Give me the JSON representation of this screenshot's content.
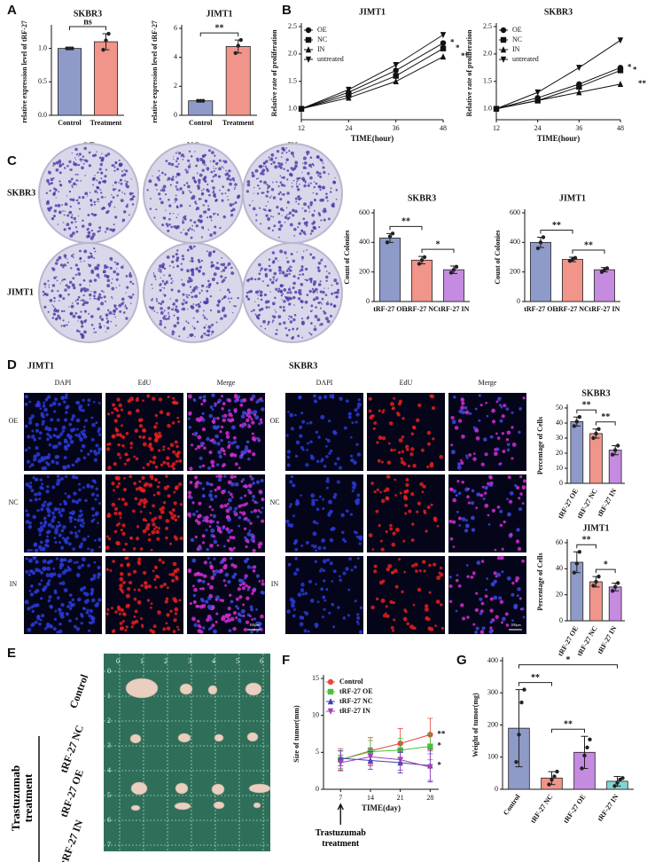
{
  "panels": [
    "A",
    "B",
    "C",
    "D",
    "E",
    "F",
    "G"
  ],
  "colony": {
    "columns": [
      "OE",
      "NC",
      "IN"
    ],
    "rows": [
      "SKBR3",
      "JIMT1"
    ]
  },
  "edu": {
    "titles": [
      "JIMT1",
      "SKBR3"
    ],
    "columns": [
      "DAPI",
      "EdU",
      "Merge"
    ],
    "rows": [
      "OE",
      "NC",
      "IN"
    ],
    "scale": "100μm"
  },
  "tumor": {
    "rows": [
      "Control",
      "tRF-27 NC",
      "tRF-27 OE",
      "tRF-27 IN"
    ],
    "group": "Trastuzumab treatment",
    "ruler_x": [
      "0",
      "1",
      "2",
      "3",
      "4",
      "5",
      "6"
    ],
    "ruler_y": [
      "0",
      "1",
      "2",
      "3",
      "4",
      "5",
      "6",
      "7"
    ]
  },
  "chart_data": [
    {
      "type": "bar",
      "title": "SKBR3",
      "ylabel": "relative expression level of tRF-27",
      "categories": [
        "Control",
        "Treatment"
      ],
      "values": [
        1.0,
        1.1
      ],
      "errors": [
        0.01,
        0.12
      ],
      "points": [
        [
          1.0,
          1.0,
          1.0
        ],
        [
          0.98,
          1.12,
          1.22
        ]
      ],
      "colors": [
        "#8e9ac8",
        "#f1948a"
      ],
      "ylim": [
        0,
        1.3
      ],
      "yticks": [
        {
          "value": 0,
          "label": "0.0"
        },
        {
          "value": 0.5,
          "label": "0.5"
        },
        {
          "value": 1,
          "label": "1.0"
        }
      ],
      "annotations": [
        "ns"
      ]
    },
    {
      "type": "bar",
      "title": "JIMT1",
      "ylabel": "relative expression level of tRF-27",
      "categories": [
        "Control",
        "Treatment"
      ],
      "values": [
        1.0,
        4.75
      ],
      "errors": [
        0.02,
        0.45
      ],
      "points": [
        [
          1.0,
          1.0,
          1.0
        ],
        [
          4.3,
          4.8,
          5.2
        ]
      ],
      "colors": [
        "#8e9ac8",
        "#f1948a"
      ],
      "ylim": [
        0,
        6
      ],
      "yticks": [
        0,
        2,
        4,
        6
      ],
      "annotations": [
        "**"
      ]
    },
    {
      "type": "line",
      "title": "JIMT1",
      "xlabel": "TIME(hour)",
      "ylabel": "Relative rate of proliferation",
      "x": [
        12,
        24,
        36,
        48
      ],
      "xlim": [
        12,
        48
      ],
      "xticks": [
        12,
        24,
        36,
        48
      ],
      "ylim": [
        0.8,
        2.5
      ],
      "yticks": [
        {
          "value": 1,
          "label": "1.0"
        },
        {
          "value": 1.5,
          "label": "1.5"
        },
        {
          "value": 2,
          "label": "2.0"
        },
        {
          "value": 2.5,
          "label": "2.5"
        }
      ],
      "series": [
        {
          "name": "OE",
          "color": "#111111",
          "marker": "circle",
          "values": [
            1.0,
            1.3,
            1.7,
            2.2
          ]
        },
        {
          "name": "NC",
          "color": "#111111",
          "marker": "square",
          "values": [
            1.0,
            1.25,
            1.6,
            2.1
          ]
        },
        {
          "name": "IN",
          "color": "#111111",
          "marker": "triangle",
          "values": [
            1.0,
            1.2,
            1.5,
            1.95
          ]
        },
        {
          "name": "untreated",
          "color": "#111111",
          "marker": "triangle-down",
          "values": [
            1.0,
            1.35,
            1.8,
            2.35
          ]
        }
      ],
      "legend": "upper left",
      "annotations": [
        "*",
        "*",
        "**"
      ]
    },
    {
      "type": "line",
      "title": "SKBR3",
      "xlabel": "TIME(hour)",
      "ylabel": "Relative rate of proliferation",
      "x": [
        12,
        24,
        36,
        48
      ],
      "xlim": [
        12,
        48
      ],
      "xticks": [
        12,
        24,
        36,
        48
      ],
      "ylim": [
        0.8,
        2.5
      ],
      "yticks": [
        {
          "value": 1,
          "label": "1.0"
        },
        {
          "value": 1.5,
          "label": "1.5"
        },
        {
          "value": 2,
          "label": "2.0"
        },
        {
          "value": 2.5,
          "label": "2.5"
        }
      ],
      "series": [
        {
          "name": "OE",
          "color": "#111111",
          "marker": "circle",
          "values": [
            1.0,
            1.2,
            1.45,
            1.75
          ]
        },
        {
          "name": "NC",
          "color": "#111111",
          "marker": "square",
          "values": [
            1.0,
            1.15,
            1.4,
            1.7
          ]
        },
        {
          "name": "IN",
          "color": "#111111",
          "marker": "triangle",
          "values": [
            1.0,
            1.15,
            1.3,
            1.45
          ]
        },
        {
          "name": "untreated",
          "color": "#111111",
          "marker": "triangle-down",
          "values": [
            1.0,
            1.3,
            1.75,
            2.25
          ]
        }
      ],
      "legend": "upper left",
      "annotations": [
        "*",
        "*",
        "**"
      ]
    },
    {
      "type": "bar",
      "title": "SKBR3",
      "ylabel": "Count of Colonies",
      "categories": [
        "tRF-27 OE",
        "tRF-27 NC",
        "tRF-27 IN"
      ],
      "values": [
        430,
        280,
        215
      ],
      "errors": [
        30,
        25,
        25
      ],
      "points": [
        [
          400,
          440,
          460
        ],
        [
          255,
          280,
          300
        ],
        [
          195,
          215,
          235
        ]
      ],
      "colors": [
        "#8e9ac8",
        "#f1948a",
        "#c58be0"
      ],
      "ylim": [
        0,
        600
      ],
      "yticks": [
        0,
        200,
        400,
        600
      ],
      "annotations": [
        "**",
        "*"
      ]
    },
    {
      "type": "bar",
      "title": "JIMT1",
      "ylabel": "Count of Colonies",
      "categories": [
        "tRF-27 OE",
        "tRF-27 NC",
        "tRF-27 IN"
      ],
      "values": [
        400,
        285,
        215
      ],
      "errors": [
        35,
        15,
        15
      ],
      "points": [
        [
          360,
          400,
          435
        ],
        [
          275,
          285,
          295
        ],
        [
          200,
          215,
          225
        ]
      ],
      "colors": [
        "#8e9ac8",
        "#f1948a",
        "#c58be0"
      ],
      "ylim": [
        0,
        600
      ],
      "yticks": [
        0,
        200,
        400,
        600
      ],
      "annotations": [
        "**",
        "**"
      ]
    },
    {
      "type": "bar",
      "title": "SKBR3",
      "ylabel": "Percentage of Cells",
      "categories": [
        "tRF-27 OE",
        "tRF-27 NC",
        "tRF-27 IN"
      ],
      "values": [
        41,
        33,
        22
      ],
      "errors": [
        3,
        3,
        3
      ],
      "points": [
        [
          38,
          41,
          44
        ],
        [
          30,
          33,
          36
        ],
        [
          19,
          22,
          25
        ]
      ],
      "colors": [
        "#8e9ac8",
        "#f1948a",
        "#c58be0"
      ],
      "ylim": [
        0,
        50
      ],
      "yticks": [
        0,
        10,
        20,
        30,
        40,
        50
      ],
      "annotations": [
        "**",
        "**"
      ]
    },
    {
      "type": "bar",
      "title": "JIMT1",
      "ylabel": "Percentage of Cells",
      "categories": [
        "tRF-27 OE",
        "tRF-27 NC",
        "tRF-27 IN"
      ],
      "values": [
        45,
        30,
        26
      ],
      "errors": [
        8,
        4,
        3
      ],
      "points": [
        [
          37,
          44,
          53
        ],
        [
          27,
          30,
          34
        ],
        [
          23,
          26,
          29
        ]
      ],
      "colors": [
        "#8e9ac8",
        "#f1948a",
        "#c58be0"
      ],
      "ylim": [
        0,
        60
      ],
      "yticks": [
        0,
        20,
        40,
        60
      ],
      "annotations": [
        "**",
        "*"
      ]
    },
    {
      "type": "line",
      "xlabel": "TIME(day)",
      "ylabel": "Size of tumor(mm)",
      "x": [
        7,
        14,
        21,
        28
      ],
      "xlim": [
        3,
        30
      ],
      "xticks": [
        7,
        14,
        21,
        28
      ],
      "ylim": [
        0,
        15
      ],
      "yticks": [
        0,
        5,
        10,
        15
      ],
      "series": [
        {
          "name": "Control",
          "color": "#e8463f",
          "marker": "circle",
          "values": [
            4,
            5.2,
            6.2,
            7.4
          ],
          "errors": [
            1.5,
            1.8,
            2,
            2.2
          ]
        },
        {
          "name": "tRF-27 OE",
          "color": "#49c13c",
          "marker": "square",
          "values": [
            4,
            5.1,
            5.3,
            5.8
          ],
          "errors": [
            1.2,
            1.5,
            1.6,
            1.8
          ]
        },
        {
          "name": "tRF-27 NC",
          "color": "#3e3fb5",
          "marker": "triangle",
          "values": [
            4.2,
            3.9,
            3.6,
            3.2
          ],
          "errors": [
            1.0,
            1.2,
            1.4,
            2.2
          ]
        },
        {
          "name": "tRF-27 IN",
          "color": "#a43fbf",
          "marker": "triangle-down",
          "values": [
            3.6,
            4.4,
            4.0,
            3.0
          ],
          "errors": [
            1.0,
            1.2,
            1.4,
            1.8
          ]
        }
      ],
      "legend": "upper left",
      "annotations": [
        "**",
        "*",
        "*",
        "Trastuzumab treatment"
      ]
    },
    {
      "type": "bar",
      "ylabel": "Weight of tumor(mg)",
      "categories": [
        "Control",
        "tRF-27 NC",
        "tRF-27 OE",
        "tRF-27 IN"
      ],
      "values": [
        190,
        35,
        115,
        25
      ],
      "errors": [
        120,
        20,
        50,
        15
      ],
      "points": [
        [
          85,
          170,
          270,
          310
        ],
        [
          15,
          30,
          40,
          55
        ],
        [
          65,
          105,
          130,
          155
        ],
        [
          10,
          20,
          30,
          35
        ]
      ],
      "colors": [
        "#8e9ac8",
        "#f1948a",
        "#c58be0",
        "#80d6d2"
      ],
      "ylim": [
        0,
        400
      ],
      "yticks": [
        0,
        100,
        200,
        300,
        400
      ],
      "annotations": [
        "**",
        "**",
        "*"
      ]
    }
  ]
}
